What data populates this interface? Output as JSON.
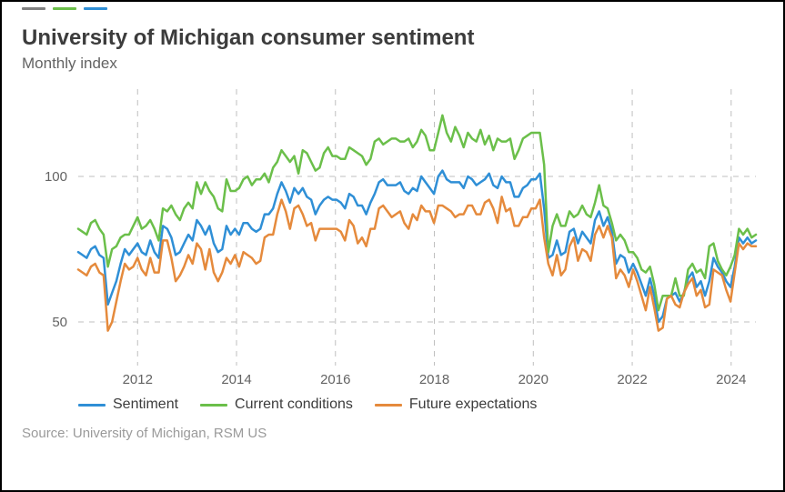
{
  "title": "University of Michigan consumer sentiment",
  "subtitle": "Monthly index",
  "source": "Source: University of Michigan, RSM US",
  "chart": {
    "type": "line",
    "background_color": "#ffffff",
    "grid_color": "#bfbfbf",
    "grid_dash": "6 6",
    "line_width": 2.5,
    "x": {
      "start_year": 2010.8,
      "end_year": 2024.5,
      "tick_years": [
        2012,
        2014,
        2016,
        2018,
        2020,
        2022,
        2024
      ],
      "label_fontsize": 15
    },
    "y": {
      "min": 35,
      "max": 130,
      "ticks": [
        50,
        100
      ],
      "label_fontsize": 15
    },
    "legend_top_colors": [
      "#808080",
      "#6bbf4a",
      "#2f8fd6"
    ],
    "series": [
      {
        "id": "sentiment",
        "label": "Sentiment",
        "color": "#2f8fd6",
        "values": [
          74,
          73,
          72,
          75,
          76,
          73,
          72,
          56,
          60,
          64,
          70,
          75,
          73,
          75,
          77,
          74,
          73,
          78,
          74,
          72,
          83,
          82,
          79,
          73,
          74,
          77,
          80,
          78,
          85,
          83,
          80,
          83,
          77,
          74,
          75,
          83,
          80,
          82,
          80,
          84,
          84,
          82,
          81,
          82,
          87,
          87,
          89,
          94,
          98,
          95,
          91,
          96,
          94,
          96,
          93,
          92,
          87,
          90,
          92,
          93,
          92,
          92,
          91,
          89,
          94,
          93,
          90,
          90,
          87,
          91,
          94,
          98,
          99,
          97,
          97,
          97,
          98,
          95,
          94,
          96,
          95,
          100,
          98,
          96,
          94,
          100,
          102,
          99,
          98,
          98,
          98,
          96,
          100,
          99,
          97,
          98,
          99,
          101,
          97,
          96,
          100,
          98,
          98,
          93,
          93,
          96,
          97,
          99,
          99,
          101,
          89,
          72,
          73,
          78,
          73,
          74,
          81,
          82,
          77,
          81,
          79,
          77,
          85,
          88,
          83,
          86,
          81,
          70,
          73,
          72,
          67,
          70,
          67,
          63,
          59,
          65,
          59,
          50,
          52,
          58,
          59,
          60,
          57,
          60,
          65,
          67,
          62,
          64,
          59,
          64,
          72,
          69,
          67,
          64,
          62,
          69,
          79,
          77,
          79,
          77,
          78
        ]
      },
      {
        "id": "current",
        "label": "Current conditions",
        "color": "#6bbf4a",
        "values": [
          82,
          81,
          80,
          84,
          85,
          82,
          80,
          69,
          75,
          76,
          79,
          80,
          80,
          83,
          86,
          82,
          83,
          85,
          82,
          78,
          89,
          88,
          90,
          87,
          85,
          89,
          91,
          89,
          98,
          94,
          98,
          95,
          93,
          89,
          88,
          99,
          95,
          95,
          96,
          99,
          100,
          97,
          99,
          99,
          101,
          98,
          103,
          105,
          109,
          107,
          105,
          107,
          101,
          109,
          108,
          105,
          102,
          103,
          108,
          110,
          107,
          107,
          106,
          106,
          110,
          109,
          108,
          107,
          104,
          106,
          112,
          113,
          111,
          112,
          113,
          113,
          112,
          112,
          113,
          110,
          112,
          116,
          114,
          109,
          109,
          115,
          121,
          115,
          112,
          117,
          114,
          110,
          115,
          113,
          112,
          116,
          111,
          114,
          109,
          113,
          112,
          112,
          113,
          106,
          109,
          113,
          114,
          115,
          115,
          115,
          104,
          74,
          83,
          87,
          83,
          83,
          88,
          86,
          87,
          90,
          87,
          86,
          91,
          97,
          90,
          89,
          84,
          78,
          80,
          78,
          74,
          74,
          72,
          68,
          67,
          69,
          63,
          54,
          59,
          59,
          59,
          65,
          59,
          59,
          68,
          70,
          67,
          68,
          65,
          76,
          77,
          71,
          68,
          66,
          69,
          73,
          82,
          80,
          82,
          79,
          80
        ]
      },
      {
        "id": "future",
        "label": "Future expectations",
        "color": "#e58a3c",
        "values": [
          68,
          67,
          66,
          69,
          70,
          67,
          66,
          47,
          50,
          57,
          64,
          70,
          68,
          69,
          72,
          68,
          66,
          72,
          67,
          67,
          78,
          78,
          72,
          64,
          66,
          69,
          73,
          70,
          77,
          75,
          68,
          75,
          67,
          64,
          67,
          72,
          70,
          73,
          69,
          74,
          73,
          72,
          70,
          71,
          79,
          80,
          80,
          87,
          92,
          88,
          82,
          89,
          90,
          87,
          83,
          84,
          78,
          82,
          82,
          82,
          82,
          82,
          81,
          78,
          85,
          83,
          77,
          79,
          76,
          82,
          82,
          89,
          90,
          88,
          86,
          87,
          88,
          84,
          82,
          87,
          85,
          90,
          88,
          88,
          84,
          90,
          90,
          89,
          88,
          86,
          87,
          87,
          90,
          90,
          87,
          87,
          91,
          92,
          89,
          84,
          93,
          88,
          89,
          83,
          83,
          86,
          86,
          89,
          89,
          92,
          79,
          70,
          66,
          73,
          66,
          68,
          76,
          79,
          71,
          75,
          74,
          71,
          80,
          83,
          79,
          83,
          79,
          65,
          68,
          66,
          62,
          68,
          64,
          59,
          54,
          62,
          55,
          47,
          48,
          58,
          59,
          56,
          55,
          60,
          63,
          65,
          59,
          61,
          55,
          56,
          68,
          67,
          66,
          61,
          57,
          67,
          77,
          75,
          77,
          76,
          76
        ]
      }
    ]
  }
}
